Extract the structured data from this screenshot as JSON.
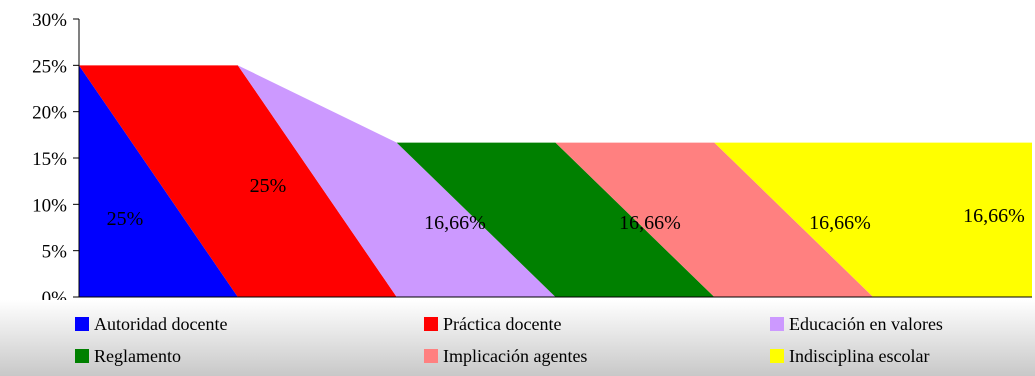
{
  "chart_data": {
    "type": "area",
    "title": "",
    "categories": [
      "Autoridad docente",
      "Práctica docente",
      "Educación en valores",
      "Reglamento",
      "Implicación agentes",
      "Indisciplina escolar"
    ],
    "values": [
      25,
      25,
      16.66,
      16.66,
      16.66,
      16.66
    ],
    "data_labels": [
      "25%",
      "25%",
      "16,66%",
      "16,66%",
      "16,66%",
      "16,66%"
    ],
    "colors": [
      "#0000ff",
      "#ff0000",
      "#cc99ff",
      "#008000",
      "#ff8080",
      "#ffff00"
    ],
    "y_ticks": [
      "0%",
      "5%",
      "10%",
      "15%",
      "20%",
      "25%",
      "30%"
    ],
    "ylim": [
      0,
      30
    ],
    "grid": false,
    "legend_position": "bottom",
    "legend": [
      "Autoridad docente",
      "Práctica docente",
      "Educación en valores",
      "Reglamento",
      "Implicación agentes",
      "Indisciplina escolar"
    ]
  }
}
